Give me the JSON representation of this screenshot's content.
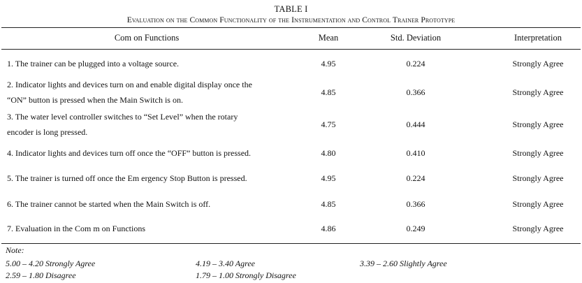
{
  "caption": {
    "label": "TABLE I",
    "title": "Evaluation on the Common Functionality of the Instrumentation and Control Trainer Prototype"
  },
  "table": {
    "headers": {
      "functions": "Com on Functions",
      "mean": "Mean",
      "std": "Std.  Deviation",
      "interpretation": "Interpretation"
    },
    "rows": [
      {
        "line1": "1. The trainer can be plugged into a voltage source.",
        "line2": "",
        "mean": "4.95",
        "std": "0.224",
        "interpretation": "Strongly Agree"
      },
      {
        "line1": "2. Indicator lights  and devices turn on and enable digital display once the",
        "line2": "“ON” button is pressed when the Main Switch is on.",
        "mean": "4.85",
        "std": "0.366",
        "interpretation": "Strongly Agree"
      },
      {
        "line1": "3. The water level controller switches to “Set Level” when the rotary",
        "line2": "encoder is long pressed.",
        "mean": "4.75",
        "std": "0.444",
        "interpretation": "Strongly Agree"
      },
      {
        "line1": "4. Indicator lights  and devices turn off once the “OFF”  button is pressed.",
        "line2": "",
        "mean": "4.80",
        "std": "0.410",
        "interpretation": "Strongly Agree"
      },
      {
        "line1": "5. The trainer is  turned off once the Em ergency Stop Button is pressed.",
        "line2": "",
        "mean": "4.95",
        "std": "0.224",
        "interpretation": "Strongly Agree"
      },
      {
        "line1": "6. The trainer cannot be started when the Main Switch is off.",
        "line2": "",
        "mean": "4.85",
        "std": "0.366",
        "interpretation": "Strongly Agree"
      },
      {
        "line1": "7. Evaluation in the Com m on Functions",
        "line2": "",
        "mean": "4.86",
        "std": "0.249",
        "interpretation": "Strongly Agree"
      }
    ]
  },
  "notes": {
    "heading": "Note:",
    "scale": [
      "5.00 – 4.20 Strongly Agree",
      "4.19 – 3.40 Agree",
      "3.39 – 2.60 Slightly Agree",
      "2.59 – 1.80 Disagree",
      "1.79 – 1.00 Strongly Disagree"
    ]
  }
}
